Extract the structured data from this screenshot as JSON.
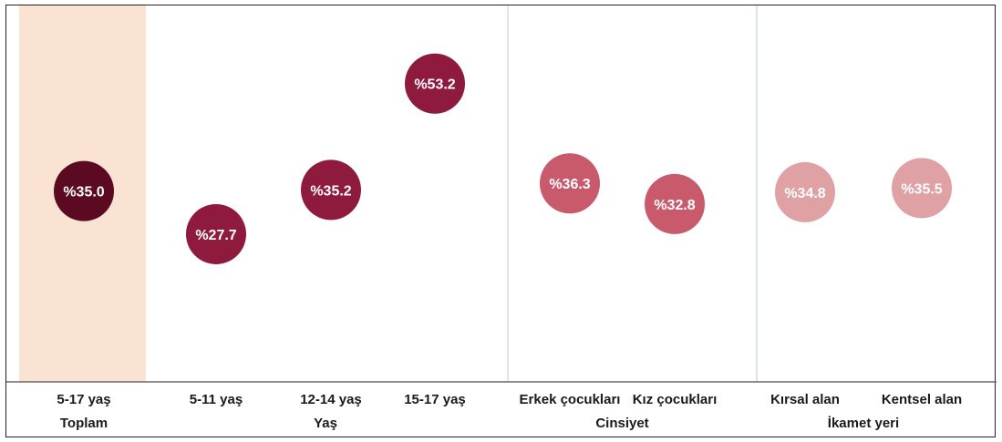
{
  "chart_data": {
    "type": "scatter",
    "unit_prefix": "%",
    "categories": [
      "5-17 yaş",
      "5-11 yaş",
      "12-14 yaş",
      "15-17 yaş",
      "Erkek çocukları",
      "Kız çocukları",
      "Kırsal alan",
      "Kentsel alan"
    ],
    "values": [
      35.0,
      27.7,
      35.2,
      53.2,
      36.3,
      32.8,
      34.8,
      35.5
    ],
    "groups": [
      {
        "label": "Toplam",
        "categories": [
          "5-17 yaş"
        ],
        "color": "#5c0a22"
      },
      {
        "label": "Yaş",
        "categories": [
          "5-11 yaş",
          "12-14 yaş",
          "15-17 yaş"
        ],
        "color": "#8e1a3e"
      },
      {
        "label": "Cinsiyet",
        "categories": [
          "Erkek çocukları",
          "Kız çocukları"
        ],
        "color": "#c85a6c"
      },
      {
        "label": "İkamet yeri",
        "categories": [
          "Kırsal alan",
          "Kentsel alan"
        ],
        "color": "#dfa1a4"
      }
    ],
    "highlight_category": "5-17 yaş",
    "highlight_color": "#fbe3d4",
    "separator_color": "#c3d4e6",
    "ylim": [
      20,
      60
    ],
    "grid": false,
    "title": "",
    "xlabel": "",
    "ylabel": ""
  }
}
